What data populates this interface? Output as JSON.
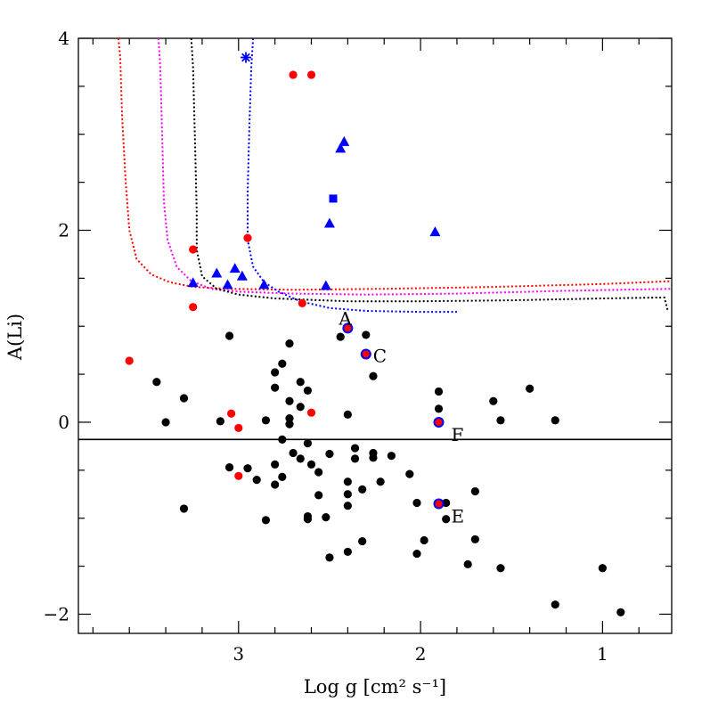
{
  "chart_data": {
    "type": "scatter",
    "title": "",
    "xlabel": "Log g [cm² s⁻¹]",
    "ylabel": "A(Li)",
    "xlim": [
      3.88,
      0.62
    ],
    "ylim": [
      -2.2,
      4.0
    ],
    "x_ticks": [
      3,
      2,
      1
    ],
    "x_tick_labels": [
      "3",
      "2",
      "1"
    ],
    "y_ticks": [
      -2,
      0,
      2,
      4
    ],
    "y_tick_labels": [
      "−2",
      "0",
      "2",
      "4"
    ],
    "grid": false,
    "reference_line": {
      "y": -0.18,
      "color": "#000000"
    },
    "colors": {
      "black": "#000000",
      "red": "#ff0000",
      "blue": "#0000ff",
      "magenta": "#ff00ff"
    },
    "series": [
      {
        "name": "black points",
        "marker": "circle",
        "color": "#000000",
        "points": [
          [
            3.45,
            0.42
          ],
          [
            3.4,
            0.0
          ],
          [
            3.3,
            0.25
          ],
          [
            3.3,
            -0.9
          ],
          [
            3.1,
            0.01
          ],
          [
            3.05,
            0.9
          ],
          [
            3.05,
            -0.47
          ],
          [
            2.95,
            -0.48
          ],
          [
            2.9,
            -0.6
          ],
          [
            2.85,
            0.02
          ],
          [
            2.85,
            -1.02
          ],
          [
            2.8,
            0.52
          ],
          [
            2.8,
            0.36
          ],
          [
            2.8,
            -0.44
          ],
          [
            2.8,
            -0.65
          ],
          [
            2.76,
            0.61
          ],
          [
            2.76,
            -0.18
          ],
          [
            2.76,
            -0.57
          ],
          [
            2.72,
            0.82
          ],
          [
            2.72,
            0.22
          ],
          [
            2.72,
            0.04
          ],
          [
            2.72,
            -0.02
          ],
          [
            2.7,
            -0.32
          ],
          [
            2.66,
            0.42
          ],
          [
            2.66,
            0.16
          ],
          [
            2.66,
            -0.38
          ],
          [
            2.62,
            0.33
          ],
          [
            2.62,
            -0.22
          ],
          [
            2.62,
            -0.98
          ],
          [
            2.62,
            -1.01
          ],
          [
            2.6,
            -0.44
          ],
          [
            2.56,
            -0.52
          ],
          [
            2.56,
            -0.76
          ],
          [
            2.52,
            -0.99
          ],
          [
            2.5,
            -0.33
          ],
          [
            2.5,
            -1.41
          ],
          [
            2.44,
            0.89
          ],
          [
            2.4,
            0.08
          ],
          [
            2.4,
            -0.62
          ],
          [
            2.4,
            -0.75
          ],
          [
            2.4,
            -0.87
          ],
          [
            2.4,
            -1.35
          ],
          [
            2.36,
            -0.27
          ],
          [
            2.36,
            -0.38
          ],
          [
            2.32,
            -0.7
          ],
          [
            2.32,
            -1.24
          ],
          [
            2.3,
            0.91
          ],
          [
            2.26,
            0.48
          ],
          [
            2.26,
            -0.32
          ],
          [
            2.26,
            -0.37
          ],
          [
            2.22,
            -0.62
          ],
          [
            2.16,
            -0.35
          ],
          [
            2.06,
            -0.54
          ],
          [
            2.02,
            -0.84
          ],
          [
            2.02,
            -1.37
          ],
          [
            1.98,
            -1.23
          ],
          [
            1.9,
            0.32
          ],
          [
            1.9,
            0.14
          ],
          [
            1.86,
            -0.84
          ],
          [
            1.86,
            -1.01
          ],
          [
            1.74,
            -1.48
          ],
          [
            1.7,
            -0.72
          ],
          [
            1.7,
            -1.22
          ],
          [
            1.6,
            0.22
          ],
          [
            1.56,
            0.02
          ],
          [
            1.56,
            -1.52
          ],
          [
            1.4,
            0.35
          ],
          [
            1.26,
            0.02
          ],
          [
            1.26,
            -1.9
          ],
          [
            1.0,
            -1.52
          ],
          [
            0.9,
            -1.98
          ]
        ]
      },
      {
        "name": "red points",
        "marker": "circle",
        "color": "#ff0000",
        "points": [
          [
            3.6,
            0.64
          ],
          [
            3.25,
            1.8
          ],
          [
            3.25,
            1.2
          ],
          [
            3.04,
            0.09
          ],
          [
            3.0,
            -0.06
          ],
          [
            3.0,
            -0.56
          ],
          [
            2.95,
            1.92
          ],
          [
            2.7,
            3.62
          ],
          [
            2.6,
            3.62
          ],
          [
            2.65,
            1.24
          ],
          [
            2.6,
            0.1
          ]
        ]
      },
      {
        "name": "blue triangles",
        "marker": "triangle",
        "color": "#0000ff",
        "points": [
          [
            3.25,
            1.45
          ],
          [
            3.12,
            1.55
          ],
          [
            3.06,
            1.43
          ],
          [
            3.02,
            1.6
          ],
          [
            2.98,
            1.52
          ],
          [
            2.86,
            1.43
          ],
          [
            2.52,
            1.42
          ],
          [
            2.5,
            2.07
          ],
          [
            2.44,
            2.85
          ],
          [
            2.42,
            2.92
          ],
          [
            1.92,
            1.98
          ]
        ]
      },
      {
        "name": "blue square",
        "marker": "square",
        "color": "#0000ff",
        "points": [
          [
            2.48,
            2.33
          ]
        ]
      },
      {
        "name": "blue star",
        "marker": "star",
        "color": "#0000ff",
        "points": [
          [
            2.96,
            3.8
          ]
        ]
      },
      {
        "name": "labelled stars",
        "marker": "ring",
        "color": "#0000ff",
        "fill": "#ff0000",
        "points": [
          [
            2.4,
            0.98
          ],
          [
            2.3,
            0.71
          ],
          [
            1.9,
            0.0
          ],
          [
            1.9,
            -0.85
          ]
        ],
        "labels": [
          "A",
          "C",
          "F",
          "E"
        ],
        "label_offsets": [
          "above",
          "right",
          "right-below",
          "right-below"
        ]
      }
    ],
    "curves": [
      {
        "name": "red dotted curve",
        "color": "#ff0000",
        "points": [
          [
            3.66,
            4.0
          ],
          [
            3.65,
            3.8
          ],
          [
            3.64,
            3.2
          ],
          [
            3.62,
            2.5
          ],
          [
            3.6,
            2.0
          ],
          [
            3.56,
            1.7
          ],
          [
            3.48,
            1.54
          ],
          [
            3.38,
            1.46
          ],
          [
            3.25,
            1.41
          ],
          [
            3.05,
            1.39
          ],
          [
            2.7,
            1.38
          ],
          [
            2.2,
            1.39
          ],
          [
            1.6,
            1.41
          ],
          [
            1.0,
            1.44
          ],
          [
            0.62,
            1.47
          ]
        ]
      },
      {
        "name": "magenta dotted curve",
        "color": "#ff00ff",
        "points": [
          [
            3.44,
            4.0
          ],
          [
            3.43,
            3.7
          ],
          [
            3.42,
            3.0
          ],
          [
            3.41,
            2.3
          ],
          [
            3.39,
            1.9
          ],
          [
            3.34,
            1.62
          ],
          [
            3.26,
            1.47
          ],
          [
            3.15,
            1.39
          ],
          [
            3.0,
            1.36
          ],
          [
            2.7,
            1.34
          ],
          [
            2.3,
            1.33
          ],
          [
            1.8,
            1.34
          ],
          [
            1.2,
            1.37
          ],
          [
            0.62,
            1.39
          ]
        ]
      },
      {
        "name": "black dotted curve",
        "color": "#000000",
        "points": [
          [
            3.26,
            4.0
          ],
          [
            3.25,
            3.7
          ],
          [
            3.24,
            3.0
          ],
          [
            3.23,
            2.2
          ],
          [
            3.23,
            1.8
          ],
          [
            3.2,
            1.52
          ],
          [
            3.12,
            1.39
          ],
          [
            3.0,
            1.33
          ],
          [
            2.8,
            1.29
          ],
          [
            2.4,
            1.26
          ],
          [
            2.0,
            1.26
          ],
          [
            1.5,
            1.27
          ],
          [
            1.0,
            1.29
          ],
          [
            0.66,
            1.3
          ],
          [
            0.64,
            1.15
          ]
        ]
      },
      {
        "name": "blue dotted curve",
        "color": "#0000ff",
        "points": [
          [
            2.92,
            4.0
          ],
          [
            2.93,
            3.7
          ],
          [
            2.94,
            3.1
          ],
          [
            2.95,
            2.4
          ],
          [
            2.95,
            1.9
          ],
          [
            2.92,
            1.62
          ],
          [
            2.86,
            1.46
          ],
          [
            2.78,
            1.36
          ],
          [
            2.66,
            1.26
          ],
          [
            2.5,
            1.19
          ],
          [
            2.3,
            1.16
          ],
          [
            2.0,
            1.15
          ],
          [
            1.8,
            1.15
          ]
        ]
      }
    ]
  }
}
